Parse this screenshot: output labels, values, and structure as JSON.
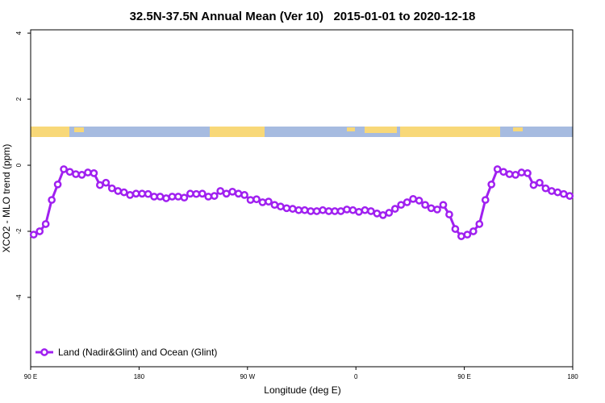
{
  "chart_data": {
    "type": "line",
    "title": "32.5N-37.5N Annual Mean (Ver 10)   2015-01-01 to 2020-12-18",
    "x_label": "Longitude (deg E)",
    "y_label": "XCO2 - MLO trend (ppm)",
    "xlim": [
      90,
      540
    ],
    "ylim": [
      -6.1,
      4.1
    ],
    "xticks": [
      {
        "value": 90,
        "label": "90 E"
      },
      180,
      {
        "value": 270,
        "label": "90 W"
      },
      {
        "value": 360,
        "label": "0"
      },
      {
        "value": 450,
        "label": "90 E"
      },
      {
        "value": 540,
        "label": "180"
      }
    ],
    "yticks": [
      -4,
      -2,
      0,
      2,
      4
    ],
    "legend_position": "bottomleft",
    "x": [
      92.5,
      97.5,
      102.5,
      107.5,
      112.5,
      117.5,
      122.5,
      127.5,
      132.5,
      137.5,
      142.5,
      147.5,
      152.5,
      157.5,
      162.5,
      167.5,
      172.5,
      177.5,
      182.5,
      187.5,
      192.5,
      197.5,
      202.5,
      207.5,
      212.5,
      217.5,
      222.5,
      227.5,
      232.5,
      237.5,
      242.5,
      247.5,
      252.5,
      257.5,
      262.5,
      267.5,
      272.5,
      277.5,
      282.5,
      287.5,
      292.5,
      297.5,
      302.5,
      307.5,
      312.5,
      317.5,
      322.5,
      327.5,
      332.5,
      337.5,
      342.5,
      347.5,
      352.5,
      357.5,
      362.5,
      367.5,
      372.5,
      377.5,
      382.5,
      387.5,
      392.5,
      397.5,
      402.5,
      407.5,
      412.5,
      417.5,
      422.5,
      427.5,
      432.5,
      437.5,
      442.5,
      447.5,
      452.5,
      457.5,
      462.5,
      467.5,
      472.5,
      477.5,
      482.5,
      487.5,
      492.5,
      497.5,
      502.5,
      507.5,
      512.5,
      517.5,
      522.5,
      527.5,
      532.5,
      537.5
    ],
    "series": [
      {
        "name": "Land (Nadir&Glint) and Ocean (Glint)",
        "color": "#a020f0",
        "values": [
          -2.1,
          -2.0,
          -1.78,
          -1.05,
          -0.58,
          -0.12,
          -0.2,
          -0.27,
          -0.29,
          -0.22,
          -0.24,
          -0.6,
          -0.53,
          -0.7,
          -0.78,
          -0.82,
          -0.9,
          -0.86,
          -0.86,
          -0.87,
          -0.95,
          -0.95,
          -1.0,
          -0.95,
          -0.95,
          -0.98,
          -0.86,
          -0.87,
          -0.86,
          -0.95,
          -0.93,
          -0.78,
          -0.86,
          -0.8,
          -0.86,
          -0.9,
          -1.05,
          -1.03,
          -1.12,
          -1.1,
          -1.2,
          -1.25,
          -1.3,
          -1.32,
          -1.36,
          -1.36,
          -1.39,
          -1.39,
          -1.36,
          -1.39,
          -1.39,
          -1.39,
          -1.34,
          -1.36,
          -1.41,
          -1.36,
          -1.39,
          -1.46,
          -1.51,
          -1.44,
          -1.32,
          -1.2,
          -1.12,
          -1.02,
          -1.07,
          -1.2,
          -1.3,
          -1.34,
          -1.2,
          -1.49,
          -1.93,
          -2.15,
          -2.1,
          -2.0,
          -1.78,
          -1.05,
          -0.58,
          -0.12,
          -0.2,
          -0.27,
          -0.29,
          -0.22,
          -0.24,
          -0.6,
          -0.53,
          -0.7,
          -0.78,
          -0.82,
          -0.87,
          -0.93
        ]
      }
    ]
  }
}
